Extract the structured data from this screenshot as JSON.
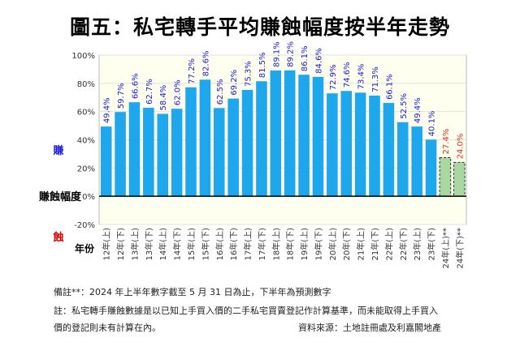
{
  "title": "圖五：私宅轉手平均賺蝕幅度按半年走勢",
  "chart_data": {
    "type": "bar",
    "ylabel_top": "賺",
    "ylabel_mid": "賺蝕幅度",
    "ylabel_bottom": "蝕",
    "xlabel": "年份",
    "ylim": [
      -20,
      100
    ],
    "yticks": [
      "100%",
      "80%",
      "60%",
      "40%",
      "20%",
      "0%",
      "-20%"
    ],
    "categories": [
      "12年(上)",
      "12年(下)",
      "13年(上)",
      "13年(下)",
      "14年(上)",
      "14年(下)",
      "15年(上)",
      "15年(下)",
      "16年(上)",
      "16年(下)",
      "17年(上)",
      "17年(下)",
      "18年(上)",
      "18年(下)",
      "19年(上)",
      "19年(下)",
      "20年(上)",
      "20年(下)",
      "21年(上)",
      "21年(下)",
      "22年(上)",
      "22年(下)",
      "23年(上)",
      "23年(下)",
      "24年(上)**",
      "24年(下)**"
    ],
    "values": [
      49.4,
      59.7,
      66.6,
      62.7,
      58.4,
      62.0,
      77.2,
      82.6,
      62.5,
      69.2,
      75.3,
      81.5,
      89.1,
      89.2,
      86.1,
      84.6,
      72.9,
      74.6,
      73.4,
      71.3,
      66.1,
      52.5,
      49.4,
      40.1,
      27.4,
      24.0
    ],
    "labels": [
      "49.4%",
      "59.7%",
      "66.6%",
      "62.7%",
      "58.4%",
      "62.0%",
      "77.2%",
      "82.6%",
      "62.5%",
      "69.2%",
      "75.3%",
      "81.5%",
      "89.1%",
      "89.2%",
      "86.1%",
      "84.6%",
      "72.9%",
      "74.6%",
      "73.4%",
      "71.3%",
      "66.1%",
      "52.5%",
      "49.4%",
      "40.1%",
      "27.4%",
      "24.0%"
    ],
    "projected_from_index": 24,
    "colors": {
      "bar": "#1ea7ec",
      "projected": "#a8d8a0",
      "plot_bg": "#fffff0",
      "up_label": "#1a1adc",
      "down_label": "#e00000",
      "projected_label": "#e03020"
    }
  },
  "notes": {
    "line1": "備註**：2024 年上半年數字截至 5 月 31 日為止，下半年為預測數字",
    "line2": "註：私宅轉手賺蝕數據是以已知上手買入價的二手私宅買賣登記作計算基準，而未能取得上手買入",
    "line3": "價的登記則未有計算在內。",
    "source": "資料來源：土地註冊處及利嘉閣地產"
  }
}
